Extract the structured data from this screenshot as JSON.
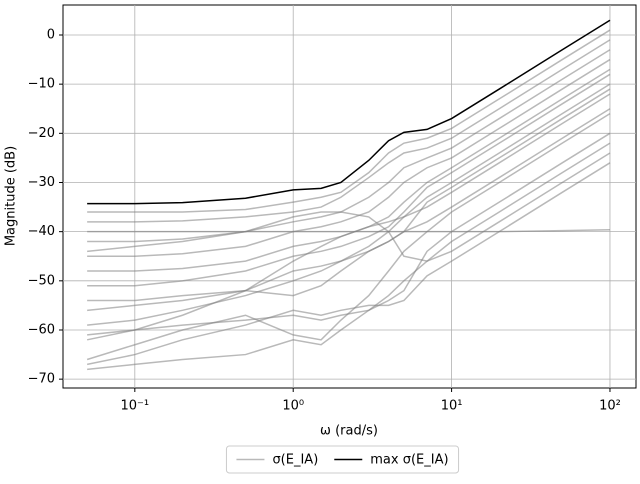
{
  "chart_data": {
    "type": "line",
    "xlabel": "ω (rad/s)",
    "ylabel": "Magnitude (dB)",
    "xscale": "log",
    "grid": true,
    "legend": "lower center outside",
    "xlim": [
      0.0352,
      146
    ],
    "ylim": [
      -71.8,
      6.1
    ],
    "xticks": [
      {
        "value": 0.1,
        "label": "10⁻¹"
      },
      {
        "value": 1,
        "label": "10⁰"
      },
      {
        "value": 10,
        "label": "10¹"
      },
      {
        "value": 100,
        "label": "10²"
      }
    ],
    "yticks": [
      0,
      {
        "value": -10,
        "label": "−10"
      },
      {
        "value": -20,
        "label": "−20"
      },
      {
        "value": -30,
        "label": "−30"
      },
      {
        "value": -40,
        "label": "−40"
      },
      {
        "value": -50,
        "label": "−50"
      },
      {
        "value": -60,
        "label": "−60"
      },
      {
        "value": -70,
        "label": "−70"
      }
    ],
    "x": [
      0.05,
      0.1,
      0.2,
      0.5,
      1,
      1.5,
      2,
      3,
      4,
      5,
      7,
      10,
      20,
      50,
      100
    ],
    "series": [
      {
        "name": "σ(E_IA)",
        "color": "#808080",
        "alpha": 0.55,
        "lines": [
          [
            -36,
            -36,
            -36,
            -35.5,
            -34,
            -33,
            -32,
            -28,
            -24,
            -22,
            -21,
            -19,
            -13,
            -5,
            1
          ],
          [
            -38,
            -38,
            -37.8,
            -37,
            -36,
            -35,
            -33,
            -29,
            -26,
            -24,
            -23,
            -21,
            -15,
            -7,
            -1
          ],
          [
            -42,
            -42,
            -41.5,
            -40,
            -38,
            -37,
            -36,
            -33,
            -30,
            -27,
            -25,
            -23,
            -17,
            -9,
            -3
          ],
          [
            -45,
            -45,
            -44.5,
            -43,
            -40,
            -39,
            -38,
            -36,
            -33,
            -30,
            -27,
            -25,
            -19,
            -11,
            -5
          ],
          [
            -48,
            -48,
            -47.5,
            -46,
            -43,
            -42,
            -41,
            -39,
            -37,
            -34,
            -30,
            -27,
            -21,
            -13,
            -7
          ],
          [
            -51,
            -51,
            -50,
            -48,
            -45,
            -44,
            -43,
            -41,
            -39,
            -36,
            -31,
            -28,
            -22,
            -14,
            -8
          ],
          [
            -54,
            -54,
            -53,
            -52,
            -53,
            -51,
            -48,
            -44,
            -42,
            -40,
            -34,
            -31,
            -25,
            -17,
            -11
          ],
          [
            -59,
            -58,
            -56,
            -53,
            -50,
            -48,
            -46,
            -43,
            -40,
            -37,
            -33,
            -30,
            -24,
            -16,
            -10
          ],
          [
            -62,
            -60,
            -57,
            -52,
            -46,
            -43,
            -41,
            -39,
            -38,
            -37,
            -35,
            -32,
            -26,
            -18,
            -12
          ],
          [
            -66,
            -63,
            -60,
            -57,
            -61,
            -62,
            -58,
            -53,
            -48,
            -44,
            -40,
            -36,
            -30,
            -22,
            -16
          ],
          [
            -68,
            -67,
            -66,
            -65,
            -62,
            -63,
            -60,
            -56,
            -53,
            -50,
            -46,
            -42,
            -36,
            -28,
            -22
          ],
          [
            -67,
            -65,
            -62,
            -59,
            -56,
            -57,
            -56,
            -55,
            -55,
            -54,
            -49,
            -46,
            -40,
            -32,
            -26
          ],
          [
            -40,
            -40,
            -40,
            -40,
            -40,
            -40,
            -40,
            -40,
            -40,
            -40,
            -40,
            -40,
            -40,
            -39.8,
            -39.6
          ],
          [
            -44,
            -43,
            -42,
            -40,
            -37,
            -36,
            -36,
            -37,
            -40,
            -45,
            -46,
            -44,
            -38,
            -30,
            -24
          ],
          [
            -56,
            -55,
            -54,
            -52,
            -48,
            -47,
            -46,
            -44,
            -42,
            -40,
            -38,
            -35,
            -29,
            -21,
            -15
          ],
          [
            -61,
            -60,
            -59,
            -58,
            -57,
            -58,
            -57,
            -56,
            -54,
            -52,
            -44,
            -40,
            -34,
            -26,
            -20
          ]
        ]
      },
      {
        "name": "max σ(E_IA)",
        "color": "#000000",
        "values": [
          -34.3,
          -34.3,
          -34.1,
          -33.2,
          -31.5,
          -31.2,
          -30,
          -25.5,
          -21.5,
          -19.8,
          -19.2,
          -17,
          -11,
          -3,
          3
        ]
      }
    ]
  }
}
